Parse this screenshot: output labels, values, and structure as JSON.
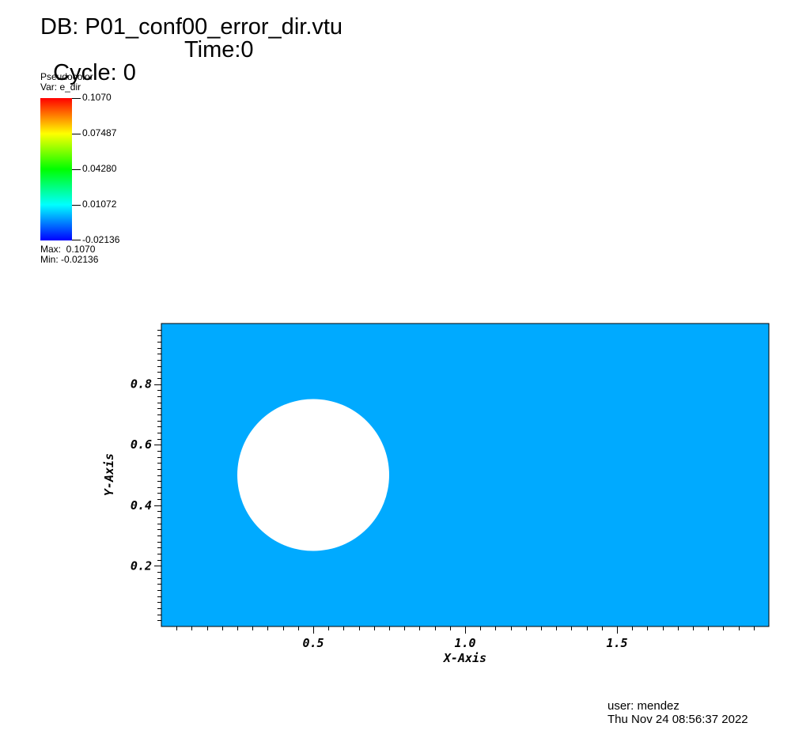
{
  "header": {
    "db": "DB: P01_conf00_error_dir.vtu",
    "cycle": "Cycle: 0",
    "time": "Time:0"
  },
  "legend": {
    "plot_type": "Pseudocolor",
    "var": "Var: e_dir",
    "ticks": [
      "0.1070",
      "0.07487",
      "0.04280",
      "0.01072",
      "-0.02136"
    ],
    "max": "Max:  0.1070",
    "min": "Min: -0.02136",
    "colormap": [
      "#ff0000",
      "#ff8000",
      "#ffff00",
      "#80ff00",
      "#00ff00",
      "#00ff80",
      "#00ffff",
      "#0080ff",
      "#0000ff"
    ]
  },
  "plot": {
    "xlabel": "X-Axis",
    "ylabel": "Y-Axis",
    "x_ticks": [
      "0.5",
      "1.0",
      "1.5"
    ],
    "y_ticks": [
      "0.8",
      "0.6",
      "0.4",
      "0.2"
    ],
    "field_color": "#00aaff",
    "x_range": [
      0,
      2
    ],
    "y_range": [
      0,
      1
    ],
    "hole": {
      "center": [
        0.5,
        0.5
      ],
      "radius": 0.25
    }
  },
  "footer": {
    "user": "user: mendez",
    "datetime": "Thu Nov 24 08:56:37 2022"
  }
}
